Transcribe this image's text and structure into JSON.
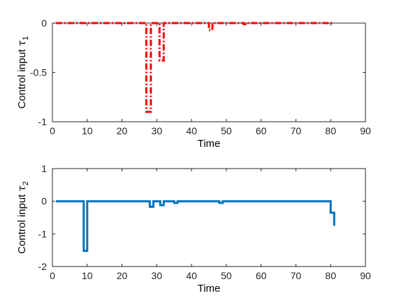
{
  "chart_data": [
    {
      "type": "line",
      "xlabel": "Time",
      "ylabel_text": "Control input",
      "ylabel_symbol": "τ",
      "ylabel_subscript": "1",
      "xlim": [
        0,
        90
      ],
      "ylim": [
        -1,
        0
      ],
      "xticks": [
        "0",
        "10",
        "20",
        "30",
        "40",
        "50",
        "60",
        "70",
        "80",
        "90"
      ],
      "yticks": [
        "-1",
        "-0.5",
        "0"
      ],
      "ytick_values": [
        -1,
        -0.5,
        0
      ],
      "line_color": "#ff0000",
      "line_style": "dash-dot",
      "grid": false,
      "series": [
        {
          "x": [
            1,
            27,
            27,
            28.3,
            28.3,
            30.8,
            30.8,
            32,
            32,
            45,
            45,
            46,
            46,
            55,
            55,
            56,
            56,
            81
          ],
          "y": [
            0,
            0,
            -0.9,
            -0.9,
            0,
            0,
            -0.38,
            -0.38,
            0,
            0,
            -0.07,
            -0.07,
            0,
            0,
            -0.01,
            -0.01,
            0,
            0
          ]
        }
      ]
    },
    {
      "type": "line",
      "xlabel": "Time",
      "ylabel_text": "Control input",
      "ylabel_symbol": "τ",
      "ylabel_subscript": "2",
      "xlim": [
        0,
        90
      ],
      "ylim": [
        -2,
        1
      ],
      "xticks": [
        "0",
        "10",
        "20",
        "30",
        "40",
        "50",
        "60",
        "70",
        "80",
        "90"
      ],
      "yticks": [
        "-2",
        "-1",
        "0",
        "1"
      ],
      "ytick_values": [
        -2,
        -1,
        0,
        1
      ],
      "line_color": "#0072bd",
      "line_style": "solid",
      "grid": false,
      "series": [
        {
          "x": [
            1,
            9,
            9,
            10,
            10,
            28,
            28,
            29,
            29,
            31,
            31,
            32,
            32,
            35,
            35,
            36,
            36,
            48,
            48,
            49,
            49,
            80,
            80,
            81,
            81
          ],
          "y": [
            0,
            0,
            -1.52,
            -1.52,
            0,
            0,
            -0.17,
            -0.17,
            0,
            0,
            -0.12,
            -0.12,
            0,
            0,
            -0.05,
            -0.05,
            0,
            0,
            -0.05,
            -0.05,
            0,
            0,
            -0.35,
            -0.35,
            -0.75
          ]
        }
      ]
    }
  ]
}
